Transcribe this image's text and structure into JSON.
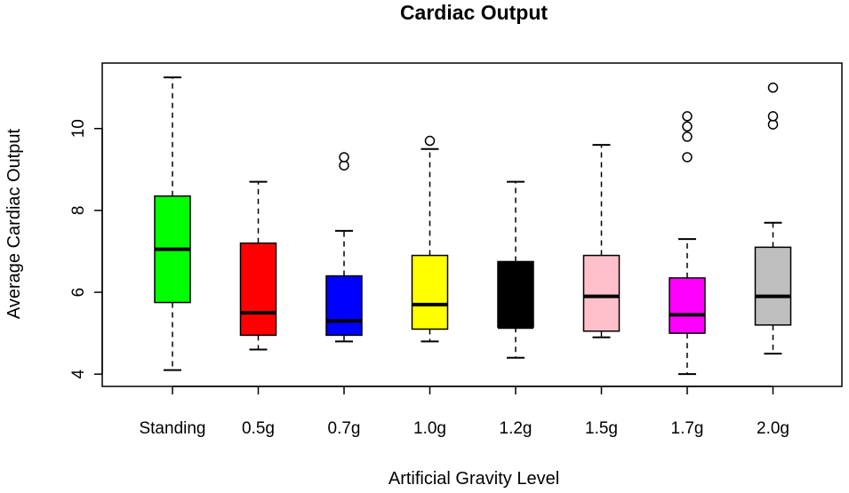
{
  "chart_data": {
    "type": "boxplot",
    "title": "Cardiac Output",
    "xlabel": "Artificial Gravity Level",
    "ylabel": "Average Cardiac Output",
    "ylim": [
      3.7,
      11.6
    ],
    "yticks": [
      4,
      6,
      8,
      10
    ],
    "ytick_labels": [
      "4",
      "6",
      "8",
      "10"
    ],
    "categories": [
      "Standing",
      "0.5g",
      "0.7g",
      "1.0g",
      "1.2g",
      "1.5g",
      "1.7g",
      "2.0g"
    ],
    "boxes": [
      {
        "label": "Standing",
        "color": "#00ff00",
        "whisker_low": 4.1,
        "q1": 5.75,
        "median": 7.05,
        "q3": 8.35,
        "whisker_high": 11.25,
        "outliers": []
      },
      {
        "label": "0.5g",
        "color": "#ff0000",
        "whisker_low": 4.6,
        "q1": 4.95,
        "median": 5.5,
        "q3": 7.2,
        "whisker_high": 8.7,
        "outliers": []
      },
      {
        "label": "0.7g",
        "color": "#0000ff",
        "whisker_low": 4.8,
        "q1": 4.95,
        "median": 5.3,
        "q3": 6.4,
        "whisker_high": 7.5,
        "outliers": [
          9.1,
          9.3
        ]
      },
      {
        "label": "1.0g",
        "color": "#ffff00",
        "whisker_low": 4.8,
        "q1": 5.1,
        "median": 5.7,
        "q3": 6.9,
        "whisker_high": 9.5,
        "outliers": [
          9.7
        ]
      },
      {
        "label": "1.2g",
        "color": "#000000",
        "whisker_low": 4.4,
        "q1": 5.15,
        "median": 5.15,
        "q3": 6.75,
        "whisker_high": 8.7,
        "outliers": []
      },
      {
        "label": "1.5g",
        "color": "#ffc0cb",
        "whisker_low": 4.9,
        "q1": 5.05,
        "median": 5.9,
        "q3": 6.9,
        "whisker_high": 9.6,
        "outliers": []
      },
      {
        "label": "1.7g",
        "color": "#ff00ff",
        "whisker_low": 4.0,
        "q1": 5.0,
        "median": 5.45,
        "q3": 6.35,
        "whisker_high": 7.3,
        "outliers": [
          9.3,
          9.8,
          10.05,
          10.3
        ]
      },
      {
        "label": "2.0g",
        "color": "#bebebe",
        "whisker_low": 4.5,
        "q1": 5.2,
        "median": 5.9,
        "q3": 7.1,
        "whisker_high": 7.7,
        "outliers": [
          10.1,
          10.3,
          11.0
        ]
      }
    ]
  }
}
